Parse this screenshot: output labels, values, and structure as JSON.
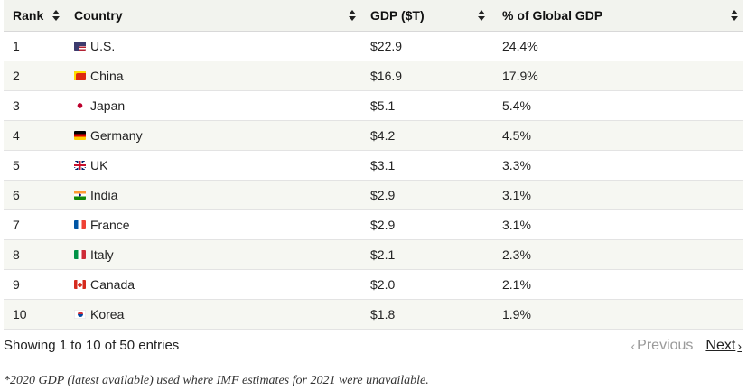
{
  "table": {
    "headers": [
      {
        "key": "rank",
        "label": "Rank"
      },
      {
        "key": "country",
        "label": "Country"
      },
      {
        "key": "gdp",
        "label": "GDP ($T)"
      },
      {
        "key": "share",
        "label": "% of Global GDP"
      }
    ],
    "rows": [
      {
        "rank": "1",
        "flag": "us-flag-icon",
        "country": "U.S.",
        "gdp": "$22.9",
        "share": "24.4%"
      },
      {
        "rank": "2",
        "flag": "china-flag-icon",
        "country": "China",
        "gdp": "$16.9",
        "share": "17.9%"
      },
      {
        "rank": "3",
        "flag": "japan-flag-icon",
        "country": "Japan",
        "gdp": "$5.1",
        "share": "5.4%"
      },
      {
        "rank": "4",
        "flag": "germany-flag-icon",
        "country": "Germany",
        "gdp": "$4.2",
        "share": "4.5%"
      },
      {
        "rank": "5",
        "flag": "uk-flag-icon",
        "country": "UK",
        "gdp": "$3.1",
        "share": "3.3%"
      },
      {
        "rank": "6",
        "flag": "india-flag-icon",
        "country": "India",
        "gdp": "$2.9",
        "share": "3.1%"
      },
      {
        "rank": "7",
        "flag": "france-flag-icon",
        "country": "France",
        "gdp": "$2.9",
        "share": "3.1%"
      },
      {
        "rank": "8",
        "flag": "italy-flag-icon",
        "country": "Italy",
        "gdp": "$2.1",
        "share": "2.3%"
      },
      {
        "rank": "9",
        "flag": "canada-flag-icon",
        "country": "Canada",
        "gdp": "$2.0",
        "share": "2.1%"
      },
      {
        "rank": "10",
        "flag": "korea-flag-icon",
        "country": "Korea",
        "gdp": "$1.8",
        "share": "1.9%"
      }
    ]
  },
  "footer": {
    "info": "Showing 1 to 10 of 50 entries",
    "previous_label": "Previous",
    "next_label": "Next"
  },
  "note": "*2020 GDP (latest available) used where IMF estimates for 2021 were unavailable.",
  "colors": {
    "header_bg": "#f2f3ee",
    "stripe_bg": "#f6f7f2",
    "disabled_text": "#9a9a9a"
  }
}
